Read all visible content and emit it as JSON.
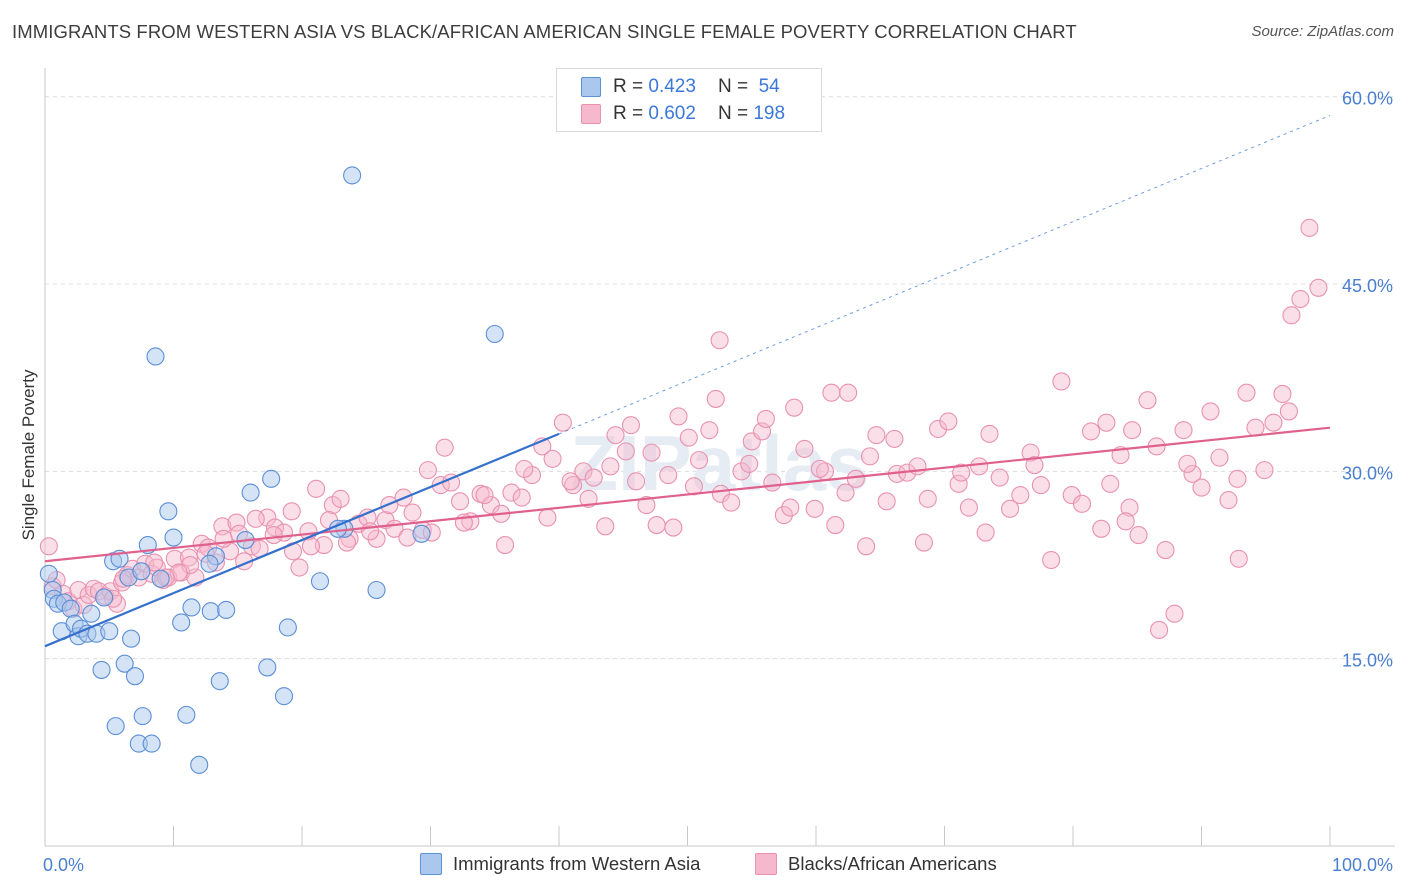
{
  "title": "IMMIGRANTS FROM WESTERN ASIA VS BLACK/AFRICAN AMERICAN SINGLE FEMALE POVERTY CORRELATION CHART",
  "source": "Source: ZipAtlas.com",
  "watermark": "ZIPatlas",
  "colors": {
    "blue_fill": "#aac8ee",
    "blue_stroke": "#5b8fd6",
    "blue_line": "#3570cc",
    "pink_fill": "#f6b8cc",
    "pink_stroke": "#e892b0",
    "pink_line": "#e0608e",
    "axis_label": "#4a7fd0",
    "grid": "#dcdcdc"
  },
  "legend": {
    "series": [
      {
        "r_label": "R =",
        "r_value": "0.423",
        "n_label": "N =",
        "n_value": "54"
      },
      {
        "r_label": "R =",
        "r_value": "0.602",
        "n_label": "N =",
        "n_value": "198"
      }
    ]
  },
  "chart_data": {
    "type": "scatter",
    "title": "IMMIGRANTS FROM WESTERN ASIA VS BLACK/AFRICAN AMERICAN SINGLE FEMALE POVERTY CORRELATION CHART",
    "xlabel": "",
    "ylabel": "Single Female Poverty",
    "xlim": [
      0,
      100
    ],
    "ylim": [
      0,
      61.5
    ],
    "x_tick_labels": [
      "0.0%",
      "100.0%"
    ],
    "y_ticks": [
      15,
      30,
      45,
      60
    ],
    "y_tick_labels": [
      "15.0%",
      "30.0%",
      "45.0%",
      "60.0%"
    ],
    "grid": true,
    "legend_position": "bottom",
    "series": [
      {
        "name": "Immigrants from Western Asia",
        "color": "#aac8ee",
        "trend": {
          "x0": 0,
          "y0": 16.0,
          "x1": 40,
          "y1": 33.0,
          "dashed_to_x": 100,
          "dashed_to_y": 58.5
        },
        "points": [
          [
            0.3,
            21.8
          ],
          [
            0.6,
            20.5
          ],
          [
            0.7,
            19.8
          ],
          [
            1.0,
            19.4
          ],
          [
            1.3,
            17.2
          ],
          [
            1.5,
            19.5
          ],
          [
            2.0,
            19.0
          ],
          [
            2.3,
            17.8
          ],
          [
            2.6,
            16.8
          ],
          [
            2.8,
            17.4
          ],
          [
            3.3,
            17.0
          ],
          [
            3.6,
            18.6
          ],
          [
            4.0,
            17.0
          ],
          [
            4.4,
            14.1
          ],
          [
            4.6,
            19.9
          ],
          [
            5.0,
            17.2
          ],
          [
            5.3,
            22.8
          ],
          [
            5.5,
            9.6
          ],
          [
            5.8,
            23.0
          ],
          [
            6.2,
            14.6
          ],
          [
            6.5,
            21.5
          ],
          [
            6.7,
            16.6
          ],
          [
            7.0,
            13.6
          ],
          [
            7.3,
            8.2
          ],
          [
            7.6,
            10.4
          ],
          [
            8.0,
            24.1
          ],
          [
            8.3,
            8.2
          ],
          [
            8.6,
            39.2
          ],
          [
            9.0,
            21.4
          ],
          [
            9.6,
            26.8
          ],
          [
            10.0,
            24.7
          ],
          [
            10.6,
            17.9
          ],
          [
            11.0,
            10.5
          ],
          [
            11.4,
            19.1
          ],
          [
            12.0,
            6.5
          ],
          [
            12.9,
            18.8
          ],
          [
            13.3,
            23.2
          ],
          [
            13.6,
            13.2
          ],
          [
            14.1,
            18.9
          ],
          [
            15.6,
            24.5
          ],
          [
            16.0,
            28.3
          ],
          [
            17.3,
            14.3
          ],
          [
            17.6,
            29.4
          ],
          [
            18.6,
            12.0
          ],
          [
            18.9,
            17.5
          ],
          [
            21.4,
            21.2
          ],
          [
            23.3,
            25.4
          ],
          [
            23.9,
            53.7
          ],
          [
            25.8,
            20.5
          ],
          [
            29.3,
            25.0
          ],
          [
            35.0,
            41.0
          ],
          [
            12.8,
            22.6
          ],
          [
            22.8,
            25.4
          ],
          [
            7.5,
            22.0
          ]
        ]
      },
      {
        "name": "Blacks/African Americans",
        "color": "#f6b8cc",
        "trend": {
          "x0": 0,
          "y0": 22.8,
          "x1": 100,
          "y1": 33.5
        },
        "points": [
          [
            0.3,
            24.0
          ],
          [
            0.6,
            20.8
          ],
          [
            0.9,
            21.3
          ],
          [
            1.4,
            20.2
          ],
          [
            1.8,
            19.6
          ],
          [
            2.2,
            19.0
          ],
          [
            2.6,
            20.5
          ],
          [
            3.0,
            19.3
          ],
          [
            3.4,
            20.1
          ],
          [
            3.8,
            20.6
          ],
          [
            4.2,
            20.4
          ],
          [
            4.7,
            20.0
          ],
          [
            5.1,
            20.4
          ],
          [
            5.6,
            19.4
          ],
          [
            6.0,
            21.1
          ],
          [
            6.4,
            21.7
          ],
          [
            6.8,
            22.2
          ],
          [
            7.3,
            21.5
          ],
          [
            7.8,
            22.6
          ],
          [
            8.3,
            21.8
          ],
          [
            8.7,
            22.3
          ],
          [
            9.2,
            21.3
          ],
          [
            9.6,
            21.5
          ],
          [
            10.1,
            23.0
          ],
          [
            10.6,
            21.9
          ],
          [
            11.2,
            23.1
          ],
          [
            11.7,
            21.5
          ],
          [
            12.2,
            24.2
          ],
          [
            12.7,
            23.9
          ],
          [
            13.3,
            22.7
          ],
          [
            13.8,
            25.6
          ],
          [
            14.4,
            23.6
          ],
          [
            14.9,
            25.9
          ],
          [
            15.5,
            22.8
          ],
          [
            16.1,
            24.0
          ],
          [
            16.7,
            23.8
          ],
          [
            17.3,
            26.3
          ],
          [
            17.9,
            25.5
          ],
          [
            18.6,
            25.1
          ],
          [
            19.2,
            26.8
          ],
          [
            19.8,
            22.3
          ],
          [
            20.5,
            25.2
          ],
          [
            21.1,
            28.6
          ],
          [
            21.7,
            24.1
          ],
          [
            22.4,
            27.3
          ],
          [
            23.0,
            27.8
          ],
          [
            23.7,
            24.6
          ],
          [
            24.4,
            25.8
          ],
          [
            25.1,
            26.3
          ],
          [
            25.8,
            24.6
          ],
          [
            26.5,
            26.1
          ],
          [
            27.2,
            25.4
          ],
          [
            27.9,
            27.9
          ],
          [
            28.6,
            26.7
          ],
          [
            29.4,
            25.3
          ],
          [
            30.1,
            25.1
          ],
          [
            30.8,
            28.9
          ],
          [
            31.6,
            29.1
          ],
          [
            32.3,
            27.6
          ],
          [
            33.1,
            26.0
          ],
          [
            33.9,
            28.2
          ],
          [
            34.7,
            27.3
          ],
          [
            35.5,
            26.6
          ],
          [
            36.3,
            28.3
          ],
          [
            37.1,
            27.9
          ],
          [
            37.9,
            29.7
          ],
          [
            38.7,
            32.0
          ],
          [
            39.5,
            31.0
          ],
          [
            40.3,
            33.9
          ],
          [
            41.1,
            28.9
          ],
          [
            41.9,
            30.0
          ],
          [
            42.7,
            29.5
          ],
          [
            43.6,
            25.6
          ],
          [
            44.4,
            32.9
          ],
          [
            45.2,
            31.6
          ],
          [
            46.0,
            29.2
          ],
          [
            46.8,
            27.3
          ],
          [
            47.6,
            25.7
          ],
          [
            48.5,
            29.7
          ],
          [
            49.3,
            34.4
          ],
          [
            50.1,
            32.7
          ],
          [
            50.9,
            30.9
          ],
          [
            51.7,
            33.3
          ],
          [
            52.6,
            28.2
          ],
          [
            53.4,
            27.5
          ],
          [
            54.2,
            30.0
          ],
          [
            55.0,
            32.4
          ],
          [
            55.8,
            33.2
          ],
          [
            56.6,
            29.1
          ],
          [
            57.5,
            26.5
          ],
          [
            58.3,
            35.1
          ],
          [
            59.1,
            31.8
          ],
          [
            59.9,
            27.0
          ],
          [
            60.7,
            30.0
          ],
          [
            61.5,
            25.7
          ],
          [
            62.3,
            28.3
          ],
          [
            63.1,
            29.4
          ],
          [
            63.9,
            24.0
          ],
          [
            64.7,
            32.9
          ],
          [
            65.5,
            27.6
          ],
          [
            66.3,
            29.8
          ],
          [
            67.1,
            29.9
          ],
          [
            67.9,
            30.4
          ],
          [
            68.7,
            27.8
          ],
          [
            69.5,
            33.4
          ],
          [
            70.3,
            34.0
          ],
          [
            71.1,
            29.0
          ],
          [
            71.9,
            27.1
          ],
          [
            72.7,
            30.4
          ],
          [
            73.5,
            33.0
          ],
          [
            74.3,
            29.5
          ],
          [
            75.1,
            27.0
          ],
          [
            75.9,
            28.1
          ],
          [
            76.7,
            31.5
          ],
          [
            77.5,
            28.9
          ],
          [
            78.3,
            22.9
          ],
          [
            79.1,
            37.2
          ],
          [
            79.9,
            28.1
          ],
          [
            80.7,
            27.4
          ],
          [
            81.4,
            33.2
          ],
          [
            82.2,
            25.4
          ],
          [
            82.9,
            29.0
          ],
          [
            83.7,
            31.3
          ],
          [
            84.4,
            27.1
          ],
          [
            85.1,
            24.9
          ],
          [
            85.8,
            35.7
          ],
          [
            86.5,
            32.0
          ],
          [
            87.2,
            23.7
          ],
          [
            87.9,
            18.6
          ],
          [
            88.6,
            33.3
          ],
          [
            89.3,
            29.8
          ],
          [
            90.0,
            28.7
          ],
          [
            90.7,
            34.8
          ],
          [
            91.4,
            31.1
          ],
          [
            92.1,
            27.7
          ],
          [
            92.8,
            29.4
          ],
          [
            93.5,
            36.3
          ],
          [
            94.2,
            33.5
          ],
          [
            94.9,
            30.1
          ],
          [
            95.6,
            33.9
          ],
          [
            96.3,
            36.2
          ],
          [
            97.0,
            42.5
          ],
          [
            97.7,
            43.8
          ],
          [
            98.4,
            49.5
          ],
          [
            99.1,
            44.7
          ],
          [
            86.7,
            17.3
          ],
          [
            84.1,
            26.0
          ],
          [
            82.6,
            33.9
          ],
          [
            77.0,
            30.5
          ],
          [
            73.2,
            25.1
          ],
          [
            71.3,
            29.9
          ],
          [
            68.4,
            24.3
          ],
          [
            66.1,
            32.6
          ],
          [
            64.2,
            31.2
          ],
          [
            62.5,
            36.3
          ],
          [
            60.3,
            30.2
          ],
          [
            58.0,
            27.1
          ],
          [
            56.1,
            34.2
          ],
          [
            54.8,
            30.6
          ],
          [
            52.2,
            35.8
          ],
          [
            50.5,
            28.8
          ],
          [
            48.9,
            25.5
          ],
          [
            47.2,
            31.5
          ],
          [
            45.6,
            33.7
          ],
          [
            44.0,
            30.4
          ],
          [
            42.3,
            27.8
          ],
          [
            40.9,
            29.2
          ],
          [
            39.1,
            26.3
          ],
          [
            37.3,
            30.2
          ],
          [
            35.8,
            24.1
          ],
          [
            34.2,
            28.1
          ],
          [
            32.6,
            25.9
          ],
          [
            31.1,
            31.9
          ],
          [
            29.8,
            30.1
          ],
          [
            28.2,
            24.7
          ],
          [
            26.8,
            27.3
          ],
          [
            25.3,
            25.2
          ],
          [
            23.5,
            24.3
          ],
          [
            22.1,
            26.1
          ],
          [
            20.7,
            24.0
          ],
          [
            19.3,
            23.6
          ],
          [
            17.8,
            24.9
          ],
          [
            16.4,
            26.2
          ],
          [
            15.1,
            25.0
          ],
          [
            13.9,
            24.6
          ],
          [
            12.5,
            23.4
          ],
          [
            11.3,
            22.5
          ],
          [
            10.4,
            21.9
          ],
          [
            9.4,
            21.5
          ],
          [
            8.5,
            22.7
          ],
          [
            6.1,
            21.4
          ],
          [
            5.3,
            19.8
          ],
          [
            52.5,
            40.5
          ],
          [
            61.2,
            36.3
          ],
          [
            84.6,
            33.3
          ],
          [
            96.8,
            34.8
          ],
          [
            92.9,
            23.0
          ],
          [
            88.9,
            30.6
          ]
        ]
      }
    ]
  },
  "bottom_legend": [
    {
      "label": "Immigrants from Western Asia"
    },
    {
      "label": "Blacks/African Americans"
    }
  ]
}
